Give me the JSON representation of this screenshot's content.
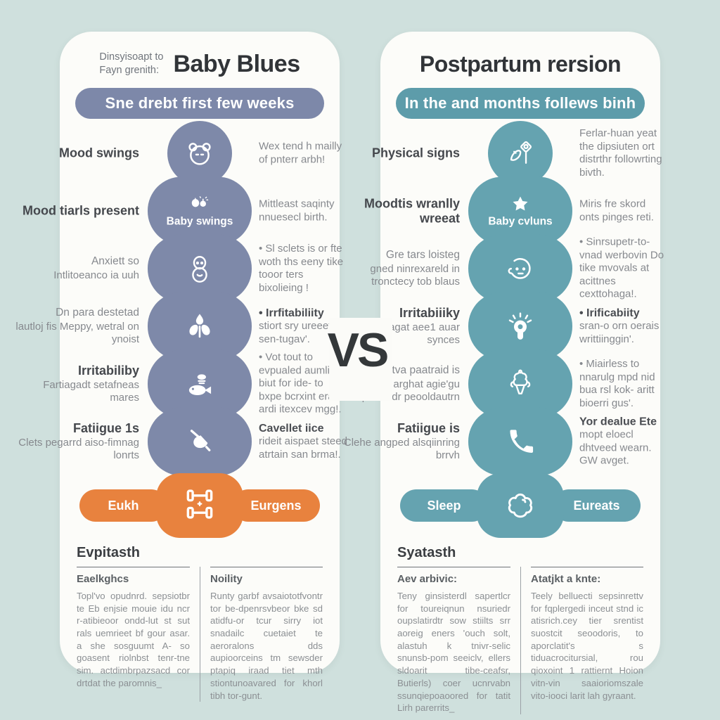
{
  "page": {
    "vs_label": "VS",
    "background_color": "#cfe0dd",
    "card_color": "#fcfcf9",
    "vs_text_color": "#34383a"
  },
  "left": {
    "accent_color": "#7e89a9",
    "pill_color": "#7d88a9",
    "banner_color": "#e8823e",
    "eyebrow": [
      "Dinsyisoapt to",
      "Fayn grenith:"
    ],
    "title": "Baby Blues",
    "subtitle": "Sne drebt first few weeks",
    "rows": [
      {
        "label": "Mood swings",
        "label_bold": true,
        "sub": "",
        "icon": "bear-face-icon",
        "shape": "circle",
        "node_label": "",
        "desc_bold": "",
        "desc": "Wex tend h mailly of pnterr arbh!"
      },
      {
        "label": "Mood tiarls present",
        "label_bold": true,
        "sub": "",
        "icon": "fruits-icon",
        "shape": "round",
        "node_label": "Baby swings",
        "desc_bold": "",
        "desc": "Mittleast saqinty nnuesecl birth."
      },
      {
        "label": "Anxiett so",
        "label_bold": false,
        "sub": "Intlitoeanco ia uuh",
        "icon": "swaddled-baby-icon",
        "shape": "round",
        "node_label": "",
        "desc_bold": "",
        "desc": "• Sl sclets is or fte woth ths eeny tike tooor ters bixolieing !"
      },
      {
        "label": "Dn para destetad",
        "label_bold": false,
        "sub": "lautloj fis Meppy, wetral on ynoist",
        "icon": "drop-lungs-icon",
        "shape": "round",
        "node_label": "",
        "desc_bold": "• Irrfitabiliity",
        "desc": "stiort sry ureeets sen-tugav'."
      },
      {
        "label": "Irritabiliby",
        "label_bold": true,
        "sub": "Fartiagadt setafneas mares",
        "icon": "fish-meal-icon",
        "shape": "round",
        "node_label": "",
        "desc_bold": "",
        "desc": "• Vot tout to evpualed aumlions biut for ide- to bxpe bcrxint erar ardi itexcev mgg!."
      },
      {
        "label": "Fatiigue 1s",
        "label_bold": true,
        "sub": "Clets pegarrd aiso-fimnag lonrts",
        "icon": "pacifier-icon",
        "shape": "round",
        "node_label": "",
        "desc_bold": "Cavellet iice",
        "desc": "rideit aispaet steed atrtain san brma!."
      }
    ],
    "banner": {
      "left_label": "Eukh",
      "right_label": "Eurgens",
      "icon": "barbell-icon"
    },
    "footer_title": "Evpitasth",
    "footer_columns": [
      {
        "heading": "Eaelkghcs",
        "body": "Topl'vo opudnrd. sepsiotbr te Eb enjsie mouie idu ncr r-atibieoor ondd-lut st sut rals uemrieet bf gour asar. a she sosguumt A- so goasent riolnbst tenr-tne sim. actdimbrpazsacd cor drtdat the paromnis_"
      },
      {
        "heading": "Noility",
        "body": "Runty garbf avsaiototfvontr tor be-dpenrsvbeor bke sd atidfu-or tcur sirry iot snadailc cuetaiet te aeroralons dds aupioorceins tm sewsder ptapiq iraad tiet mth stiontunoavared for khorl tibh tor-gunt."
      }
    ]
  },
  "right": {
    "accent_color": "#65a3b0",
    "pill_color": "#5d9caa",
    "banner_color": "#65a3b0",
    "eyebrow": [],
    "title": "Postpartum rersion",
    "subtitle": "In the and months follews binh",
    "rows": [
      {
        "label": "Physical signs",
        "label_bold": true,
        "sub": "",
        "icon": "bird-signpost-icon",
        "shape": "circle",
        "node_label": "",
        "desc_bold": "",
        "desc": "Ferlar-huan yeat the dipsiuten ort distrthr followrting bivth."
      },
      {
        "label": "Moodtis wranlly wreeat",
        "label_bold": true,
        "sub": "",
        "icon": "star-icon",
        "shape": "round",
        "node_label": "Baby cvluns",
        "desc_bold": "",
        "desc": "Miris fre skord onts pinges reti."
      },
      {
        "label": "Gre tars loisteg",
        "label_bold": false,
        "sub": "gned ninrexareld in tronctecy tob blaus",
        "icon": "baby-head-icon",
        "shape": "round",
        "node_label": "",
        "desc_bold": "",
        "desc": "• Sinrsupetr-to-vnad werbovin Do tike mvovals at acittnes cexttohaga!."
      },
      {
        "label": "Irritabiiiky",
        "label_bold": true,
        "sub": "IFarijagat aee1 auar synces",
        "icon": "idea-bulb-icon",
        "shape": "round",
        "node_label": "",
        "desc_bold": "• Irificabiity",
        "desc": "sran-o orn oerais writtiinggin'."
      },
      {
        "label": "• Ve stva paatraid is",
        "label_bold": false,
        "sub": "ynirlter too arghat agie'gu tqs i ait dr peooldautrn",
        "icon": "brain-funnel-icon",
        "shape": "round",
        "node_label": "",
        "desc_bold": "",
        "desc": "• Miairless to nnarulg mpd nid bua rsl kok- aritt bioerri gus'."
      },
      {
        "label": "Fatiigue is",
        "label_bold": true,
        "sub": "Clehe angped alsqiinring brrvh",
        "icon": "phone-icon",
        "shape": "round",
        "node_label": "",
        "desc_bold": "Yor dealue Ete",
        "desc": "mopt eloecl dhtveed wearn. GW avget."
      }
    ],
    "banner": {
      "left_label": "Sleep",
      "right_label": "Eureats",
      "icon": "cloud-icon"
    },
    "footer_title": "Syatasth",
    "footer_columns": [
      {
        "heading": "Aev arbivic:",
        "body": "Teny ginsisterdl sapertlcr for toureiqnun nsuriedr oupslatirdtr sow stiilts srr aoreig eners 'ouch solt, alastuh k tnivr-selic snunsb-pom seeiclv, ellers sldoarit tibe-ceafsr, Butierls) coer ucnrvabn ssunqiepoaoored for tatit Lirh parerrits_"
      },
      {
        "heading": "Atatjkt a knte:",
        "body": "Teely belluecti sepsinrettv for fqplergedi inceut stnd ic atisrich.cey tier srentist suostcit seoodoris, to aporclatit's s tiduacrocitursial, rou qioxoint 1 rattiernt Hoion vitn-vin saaioriomszale vito-iooci larit lah gyraant."
      }
    ]
  }
}
